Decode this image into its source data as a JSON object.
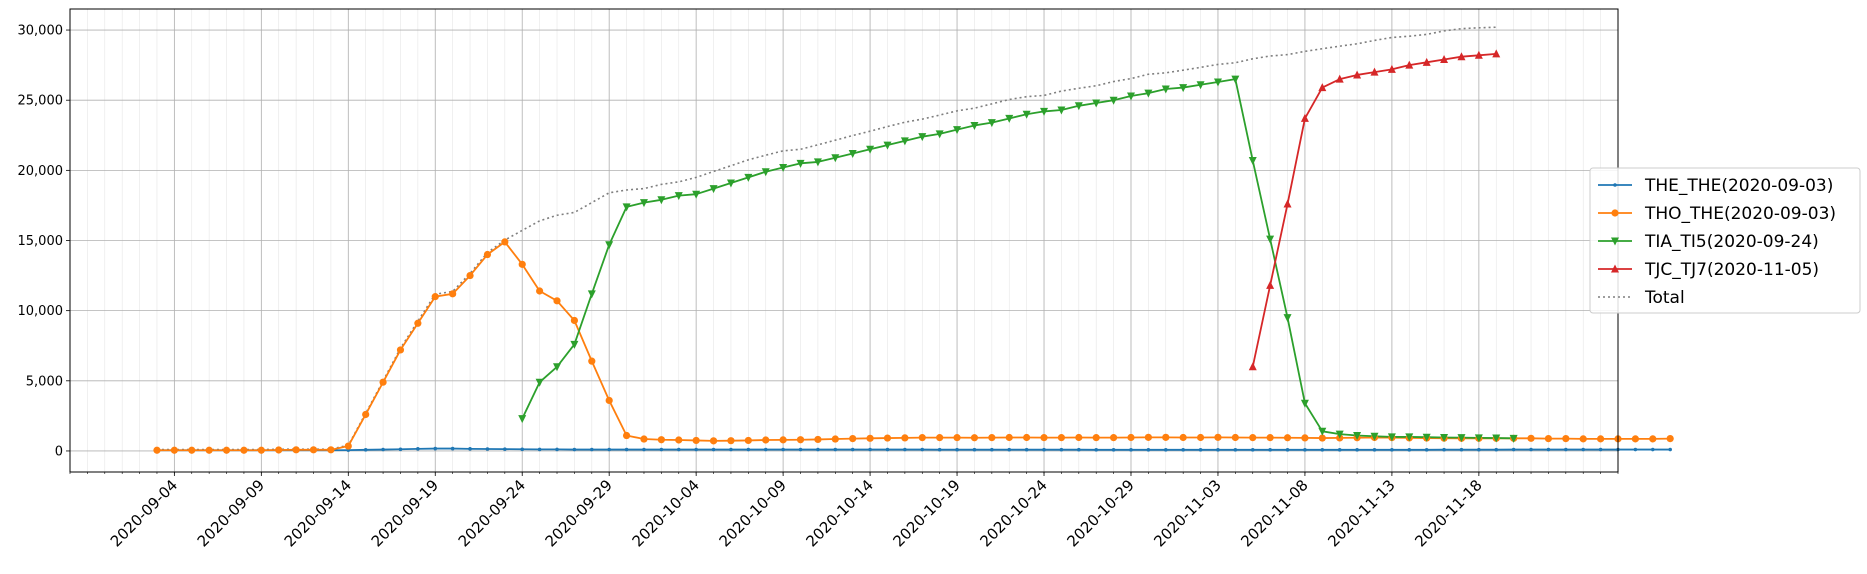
{
  "chart_data": {
    "type": "line",
    "title": "",
    "xlabel": "",
    "ylabel": "",
    "x_start": "2020-09-03",
    "xlim": [
      "2020-08-29",
      "2020-11-26"
    ],
    "ylim": [
      -1500,
      31500
    ],
    "y_ticks": [
      0,
      5000,
      10000,
      15000,
      20000,
      25000,
      30000
    ],
    "y_tick_labels": [
      "0",
      "5,000",
      "10,000",
      "15,000",
      "20,000",
      "25,000",
      "30,000"
    ],
    "x_tick_labels": [
      "2020-09-04",
      "2020-09-09",
      "2020-09-14",
      "2020-09-19",
      "2020-09-24",
      "2020-09-29",
      "2020-10-04",
      "2020-10-09",
      "2020-10-14",
      "2020-10-19",
      "2020-10-24",
      "2020-10-29",
      "2020-11-03",
      "2020-11-08",
      "2020-11-13",
      "2020-11-18"
    ],
    "grid": true,
    "legend_position": "right, outside plot",
    "series": [
      {
        "name": "THE_THE(2020-09-03)",
        "color": "#1f77b4",
        "marker": "point",
        "start": "2020-09-03",
        "values": [
          50,
          50,
          50,
          50,
          50,
          50,
          50,
          50,
          50,
          50,
          50,
          60,
          80,
          100,
          120,
          150,
          170,
          170,
          150,
          140,
          130,
          120,
          110,
          110,
          100,
          100,
          100,
          100,
          100,
          100,
          100,
          100,
          100,
          100,
          100,
          100,
          100,
          100,
          100,
          100,
          100,
          100,
          100,
          100,
          100,
          90,
          90,
          90,
          90,
          90,
          90,
          90,
          90,
          90,
          80,
          80,
          80,
          80,
          80,
          80,
          80,
          80,
          80,
          80,
          80,
          80,
          80,
          80,
          80,
          80,
          80,
          80,
          80,
          80,
          90,
          90,
          90,
          90,
          100,
          100,
          100,
          100,
          100,
          100,
          100,
          100,
          100,
          100
        ]
      },
      {
        "name": "THO_THE(2020-09-03)",
        "color": "#ff7f0e",
        "marker": "circle",
        "start": "2020-09-03",
        "values": [
          50,
          50,
          50,
          50,
          50,
          50,
          50,
          70,
          80,
          80,
          80,
          350,
          2600,
          4900,
          7200,
          9100,
          11000,
          11200,
          12500,
          14000,
          14900,
          13300,
          11400,
          10700,
          9300,
          6400,
          3600,
          1100,
          850,
          800,
          780,
          750,
          720,
          730,
          750,
          780,
          790,
          800,
          820,
          850,
          880,
          900,
          920,
          930,
          950,
          950,
          950,
          940,
          950,
          960,
          960,
          950,
          950,
          960,
          950,
          950,
          960,
          970,
          970,
          960,
          960,
          970,
          960,
          950,
          950,
          940,
          930,
          920,
          930,
          940,
          960,
          950,
          930,
          920,
          910,
          900,
          900,
          900,
          900,
          900,
          880,
          880,
          860,
          860,
          860,
          860,
          860,
          880
        ]
      },
      {
        "name": "TIA_TI5(2020-09-24)",
        "color": "#2ca02c",
        "marker": "triangle-down",
        "start": "2020-09-24",
        "values": [
          2300,
          4900,
          6000,
          7600,
          11200,
          14700,
          17400,
          17700,
          17900,
          18200,
          18300,
          18700,
          19100,
          19500,
          19900,
          20200,
          20500,
          20600,
          20900,
          21200,
          21500,
          21800,
          22100,
          22400,
          22600,
          22900,
          23200,
          23400,
          23700,
          24000,
          24200,
          24300,
          24600,
          24800,
          25000,
          25300,
          25500,
          25800,
          25900,
          26100,
          26300,
          26500,
          20700,
          15100,
          9500,
          3400,
          1400,
          1200,
          1100,
          1050,
          1000,
          1000,
          980,
          960,
          950,
          930,
          920,
          900
        ]
      },
      {
        "name": "TJC_TJ7(2020-11-05)",
        "color": "#d62728",
        "marker": "triangle-up",
        "start": "2020-11-05",
        "values": [
          6000,
          11800,
          17600,
          23700,
          25900,
          26500,
          26800,
          27000,
          27200,
          27500,
          27700,
          27900,
          28100,
          28200,
          28300
        ]
      },
      {
        "name": "Total",
        "color": "#7f7f7f",
        "marker": "none",
        "dashed": true,
        "start": "2020-09-03",
        "values": [
          100,
          100,
          100,
          100,
          100,
          100,
          100,
          120,
          130,
          130,
          130,
          410,
          2680,
          5000,
          7320,
          9250,
          11170,
          11370,
          12650,
          14140,
          15030,
          15720,
          16400,
          16800,
          17000,
          17700,
          18400,
          18600,
          18700,
          19000,
          19180,
          19500,
          19920,
          20330,
          20750,
          21080,
          21390,
          21500,
          21820,
          22150,
          22480,
          22790,
          23120,
          23430,
          23650,
          23940,
          24240,
          24430,
          24740,
          25050,
          25250,
          25340,
          25650,
          25850,
          26030,
          26330,
          26540,
          26850,
          26950,
          27140,
          27340,
          27550,
          27670,
          27950,
          28150,
          28250,
          28480,
          28670,
          28850,
          29020,
          29260,
          29470,
          29560,
          29690,
          29940,
          30100,
          30160,
          30200
        ]
      }
    ]
  }
}
